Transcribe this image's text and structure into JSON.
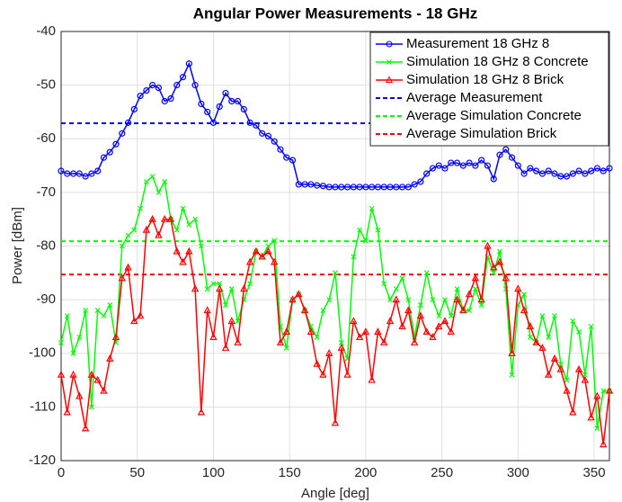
{
  "chart_data": {
    "type": "line",
    "title": "Angular Power Measurements - 18 GHz",
    "x_label": "Angle [deg]",
    "y_label": "Power [dBm]",
    "x": [
      0,
      4,
      8,
      12,
      16,
      20,
      24,
      28,
      32,
      36,
      40,
      44,
      48,
      52,
      56,
      60,
      64,
      68,
      72,
      76,
      80,
      84,
      88,
      92,
      96,
      100,
      104,
      108,
      112,
      116,
      120,
      124,
      128,
      132,
      136,
      140,
      144,
      148,
      152,
      156,
      160,
      164,
      168,
      172,
      176,
      180,
      184,
      188,
      192,
      196,
      200,
      204,
      208,
      212,
      216,
      220,
      224,
      228,
      232,
      236,
      240,
      244,
      248,
      252,
      256,
      260,
      264,
      268,
      272,
      276,
      280,
      284,
      288,
      292,
      296,
      300,
      304,
      308,
      312,
      316,
      320,
      324,
      328,
      332,
      336,
      340,
      344,
      348,
      352,
      356,
      360
    ],
    "series": [
      {
        "name": "Measurement 18 GHz 8",
        "color": "#0000ff",
        "marker": "circle",
        "values": [
          -66,
          -66.5,
          -66.5,
          -66.5,
          -67,
          -66.5,
          -66,
          -63.5,
          -62.5,
          -61,
          -59,
          -57,
          -54.5,
          -52,
          -51,
          -50,
          -50.5,
          -53,
          -52.5,
          -50,
          -48.5,
          -46,
          -50,
          -53.5,
          -55,
          -57,
          -54,
          -51.5,
          -53,
          -53,
          -54.5,
          -57,
          -57.5,
          -59,
          -59.5,
          -60.5,
          -62,
          -63.5,
          -64,
          -68.5,
          -68.5,
          -68.5,
          -68.7,
          -68.8,
          -69,
          -69,
          -69,
          -69,
          -69,
          -69,
          -69,
          -69,
          -69,
          -69,
          -69,
          -69,
          -69,
          -69,
          -68.5,
          -68,
          -66.5,
          -65.5,
          -65,
          -65.5,
          -64.5,
          -64.5,
          -65,
          -64.5,
          -65,
          -64,
          -65,
          -67.5,
          -63,
          -62,
          -63.5,
          -65,
          -66.5,
          -65.5,
          -66,
          -66.5,
          -66,
          -66.5,
          -67,
          -67,
          -66.5,
          -66,
          -66.5,
          -66,
          -65.5,
          -66,
          -65.5
        ]
      },
      {
        "name": "Simulation 18 GHz 8 Concrete",
        "color": "#00ff00",
        "marker": "x",
        "values": [
          -98,
          -93,
          -100,
          -97,
          -92,
          -110,
          -92,
          -93,
          -91,
          -98,
          -80,
          -78,
          -77,
          -73,
          -68,
          -67,
          -70,
          -68,
          -75,
          -77,
          -73,
          -76,
          -75,
          -80,
          -88,
          -87,
          -87,
          -91,
          -88,
          -94,
          -90,
          -87,
          -81,
          -82,
          -80,
          -79,
          -95,
          -99,
          -90,
          -89,
          -92,
          -95,
          -97,
          -92,
          -90,
          -85,
          -98,
          -101,
          -82,
          -77,
          -79,
          -73,
          -77,
          -87,
          -90,
          -88,
          -86,
          -90,
          -97,
          -91,
          -85,
          -90,
          -93,
          -90,
          -93,
          -88,
          -92,
          -92,
          -88,
          -91,
          -82,
          -85,
          -81,
          -88,
          -104,
          -91,
          -89,
          -97,
          -98,
          -93,
          -97,
          -93,
          -102,
          -105,
          -94,
          -96,
          -104,
          -95,
          -114,
          -107,
          -107
        ]
      },
      {
        "name": "Simulation 18 GHz 8 Brick",
        "color": "#ff0000",
        "marker": "triangle",
        "values": [
          -104,
          -111,
          -104,
          -108,
          -114,
          -104,
          -105,
          -107,
          -101,
          -97,
          -86,
          -84,
          -94,
          -93,
          -77,
          -75,
          -78,
          -75,
          -75,
          -81,
          -83,
          -81,
          -88,
          -111,
          -92,
          -97,
          -88,
          -99,
          -94,
          -98,
          -88,
          -83,
          -81,
          -82,
          -81,
          -83,
          -98,
          -96,
          -90,
          -89,
          -92,
          -96,
          -102,
          -104,
          -100,
          -113,
          -99,
          -104,
          -94,
          -97,
          -96,
          -105,
          -96,
          -98,
          -94,
          -90,
          -95,
          -92,
          -98,
          -93,
          -96,
          -97,
          -95,
          -94,
          -96,
          -90,
          -92,
          -89,
          -86,
          -90,
          -80,
          -84,
          -83,
          -86,
          -100,
          -88,
          -92,
          -95,
          -98,
          -99,
          -104,
          -101,
          -103,
          -107,
          -111,
          -103,
          -105,
          -112,
          -108,
          -117,
          -107
        ]
      }
    ],
    "reference_lines": [
      {
        "name": "Average Measurement",
        "color": "#0000ff",
        "value": -57.1
      },
      {
        "name": "Average Simulation Concrete",
        "color": "#00ff00",
        "value": -79.1
      },
      {
        "name": "Average Simulation Brick",
        "color": "#ff0000",
        "value": -85.3
      }
    ],
    "xlim": [
      0,
      360
    ],
    "xticks": [
      0,
      50,
      100,
      150,
      200,
      250,
      300,
      350
    ],
    "ylim": [
      -120,
      -40
    ],
    "yticks": [
      -120,
      -110,
      -100,
      -90,
      -80,
      -70,
      -60,
      -50,
      -40
    ],
    "grid": true,
    "legend": "upper right"
  }
}
